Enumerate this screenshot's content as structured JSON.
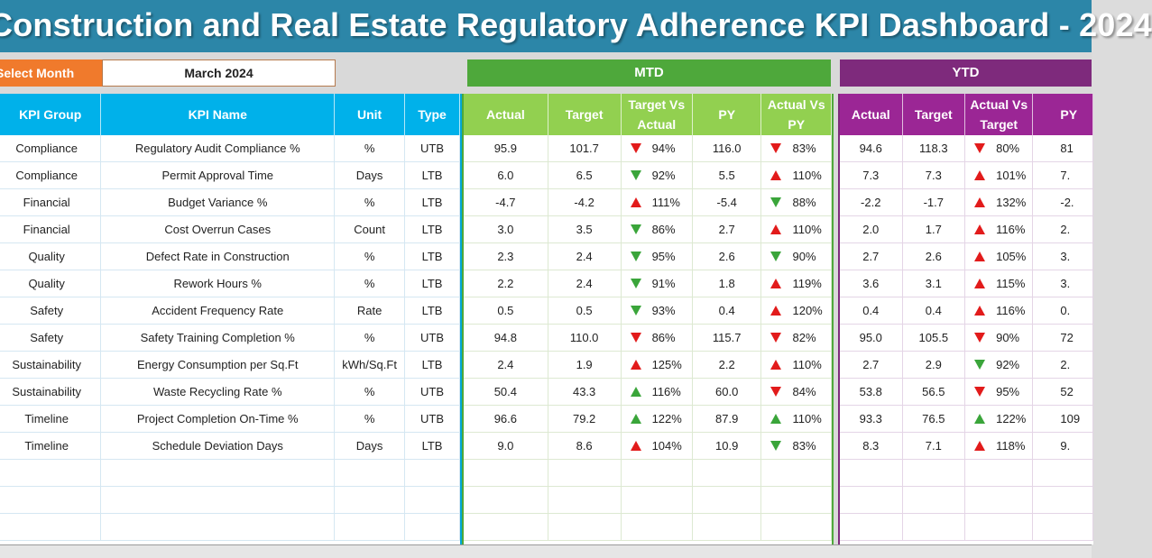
{
  "title": "Construction and Real Estate Regulatory Adherence KPI Dashboard - 2024",
  "month_selector": {
    "label": "Select Month",
    "value": "March 2024"
  },
  "sections": {
    "mtd": "MTD",
    "ytd": "YTD"
  },
  "colors": {
    "title_bg": "#2c86a8",
    "month_label": "#f07a2c",
    "kpi_header": "#00b1ea",
    "mtd_band": "#4ea83b",
    "mtd_header": "#92d050",
    "ytd_band": "#7e2a7c",
    "ytd_header": "#9b2695",
    "up_red": "#e21b1b",
    "down_green": "#3aa53a"
  },
  "kpi_headers": [
    "KPI Group",
    "KPI Name",
    "Unit",
    "Type"
  ],
  "mtd_headers": [
    "Actual",
    "Target",
    "Target Vs Actual",
    "PY",
    "Actual Vs PY"
  ],
  "ytd_headers": [
    "Actual",
    "Target",
    "Actual Vs Target",
    "PY"
  ],
  "rows": [
    {
      "group": "Compliance",
      "name": "Regulatory Audit Compliance %",
      "unit": "%",
      "type": "UTB",
      "mtd": {
        "actual": "95.9",
        "target": "101.7",
        "tva": "94%",
        "tva_icon": "arrow-down-red",
        "py": "116.0",
        "avp": "83%",
        "avp_icon": "arrow-down-red"
      },
      "ytd": {
        "actual": "94.6",
        "target": "118.3",
        "avt": "80%",
        "avt_icon": "arrow-down-red",
        "py": "81"
      }
    },
    {
      "group": "Compliance",
      "name": "Permit Approval Time",
      "unit": "Days",
      "type": "LTB",
      "mtd": {
        "actual": "6.0",
        "target": "6.5",
        "tva": "92%",
        "tva_icon": "arrow-down-green",
        "py": "5.5",
        "avp": "110%",
        "avp_icon": "arrow-up-red"
      },
      "ytd": {
        "actual": "7.3",
        "target": "7.3",
        "avt": "101%",
        "avt_icon": "arrow-up-red",
        "py": "7."
      }
    },
    {
      "group": "Financial",
      "name": "Budget Variance %",
      "unit": "%",
      "type": "LTB",
      "mtd": {
        "actual": "-4.7",
        "target": "-4.2",
        "tva": "111%",
        "tva_icon": "arrow-up-red",
        "py": "-5.4",
        "avp": "88%",
        "avp_icon": "arrow-down-green"
      },
      "ytd": {
        "actual": "-2.2",
        "target": "-1.7",
        "avt": "132%",
        "avt_icon": "arrow-up-red",
        "py": "-2."
      }
    },
    {
      "group": "Financial",
      "name": "Cost Overrun Cases",
      "unit": "Count",
      "type": "LTB",
      "mtd": {
        "actual": "3.0",
        "target": "3.5",
        "tva": "86%",
        "tva_icon": "arrow-down-green",
        "py": "2.7",
        "avp": "110%",
        "avp_icon": "arrow-up-red"
      },
      "ytd": {
        "actual": "2.0",
        "target": "1.7",
        "avt": "116%",
        "avt_icon": "arrow-up-red",
        "py": "2."
      }
    },
    {
      "group": "Quality",
      "name": "Defect Rate in Construction",
      "unit": "%",
      "type": "LTB",
      "mtd": {
        "actual": "2.3",
        "target": "2.4",
        "tva": "95%",
        "tva_icon": "arrow-down-green",
        "py": "2.6",
        "avp": "90%",
        "avp_icon": "arrow-down-green"
      },
      "ytd": {
        "actual": "2.7",
        "target": "2.6",
        "avt": "105%",
        "avt_icon": "arrow-up-red",
        "py": "3."
      }
    },
    {
      "group": "Quality",
      "name": "Rework Hours %",
      "unit": "%",
      "type": "LTB",
      "mtd": {
        "actual": "2.2",
        "target": "2.4",
        "tva": "91%",
        "tva_icon": "arrow-down-green",
        "py": "1.8",
        "avp": "119%",
        "avp_icon": "arrow-up-red"
      },
      "ytd": {
        "actual": "3.6",
        "target": "3.1",
        "avt": "115%",
        "avt_icon": "arrow-up-red",
        "py": "3."
      }
    },
    {
      "group": "Safety",
      "name": "Accident Frequency Rate",
      "unit": "Rate",
      "type": "LTB",
      "mtd": {
        "actual": "0.5",
        "target": "0.5",
        "tva": "93%",
        "tva_icon": "arrow-down-green",
        "py": "0.4",
        "avp": "120%",
        "avp_icon": "arrow-up-red"
      },
      "ytd": {
        "actual": "0.4",
        "target": "0.4",
        "avt": "116%",
        "avt_icon": "arrow-up-red",
        "py": "0."
      }
    },
    {
      "group": "Safety",
      "name": "Safety Training Completion %",
      "unit": "%",
      "type": "UTB",
      "mtd": {
        "actual": "94.8",
        "target": "110.0",
        "tva": "86%",
        "tva_icon": "arrow-down-red",
        "py": "115.7",
        "avp": "82%",
        "avp_icon": "arrow-down-red"
      },
      "ytd": {
        "actual": "95.0",
        "target": "105.5",
        "avt": "90%",
        "avt_icon": "arrow-down-red",
        "py": "72"
      }
    },
    {
      "group": "Sustainability",
      "name": "Energy Consumption per Sq.Ft",
      "unit": "kWh/Sq.Ft",
      "type": "LTB",
      "mtd": {
        "actual": "2.4",
        "target": "1.9",
        "tva": "125%",
        "tva_icon": "arrow-up-red",
        "py": "2.2",
        "avp": "110%",
        "avp_icon": "arrow-up-red"
      },
      "ytd": {
        "actual": "2.7",
        "target": "2.9",
        "avt": "92%",
        "avt_icon": "arrow-down-green",
        "py": "2."
      }
    },
    {
      "group": "Sustainability",
      "name": "Waste Recycling Rate %",
      "unit": "%",
      "type": "UTB",
      "mtd": {
        "actual": "50.4",
        "target": "43.3",
        "tva": "116%",
        "tva_icon": "arrow-up-green",
        "py": "60.0",
        "avp": "84%",
        "avp_icon": "arrow-down-red"
      },
      "ytd": {
        "actual": "53.8",
        "target": "56.5",
        "avt": "95%",
        "avt_icon": "arrow-down-red",
        "py": "52"
      }
    },
    {
      "group": "Timeline",
      "name": "Project Completion On-Time %",
      "unit": "%",
      "type": "UTB",
      "mtd": {
        "actual": "96.6",
        "target": "79.2",
        "tva": "122%",
        "tva_icon": "arrow-up-green",
        "py": "87.9",
        "avp": "110%",
        "avp_icon": "arrow-up-green"
      },
      "ytd": {
        "actual": "93.3",
        "target": "76.5",
        "avt": "122%",
        "avt_icon": "arrow-up-green",
        "py": "109"
      }
    },
    {
      "group": "Timeline",
      "name": "Schedule Deviation Days",
      "unit": "Days",
      "type": "LTB",
      "mtd": {
        "actual": "9.0",
        "target": "8.6",
        "tva": "104%",
        "tva_icon": "arrow-up-red",
        "py": "10.9",
        "avp": "83%",
        "avp_icon": "arrow-down-green"
      },
      "ytd": {
        "actual": "8.3",
        "target": "7.1",
        "avt": "118%",
        "avt_icon": "arrow-up-red",
        "py": "9."
      }
    }
  ]
}
